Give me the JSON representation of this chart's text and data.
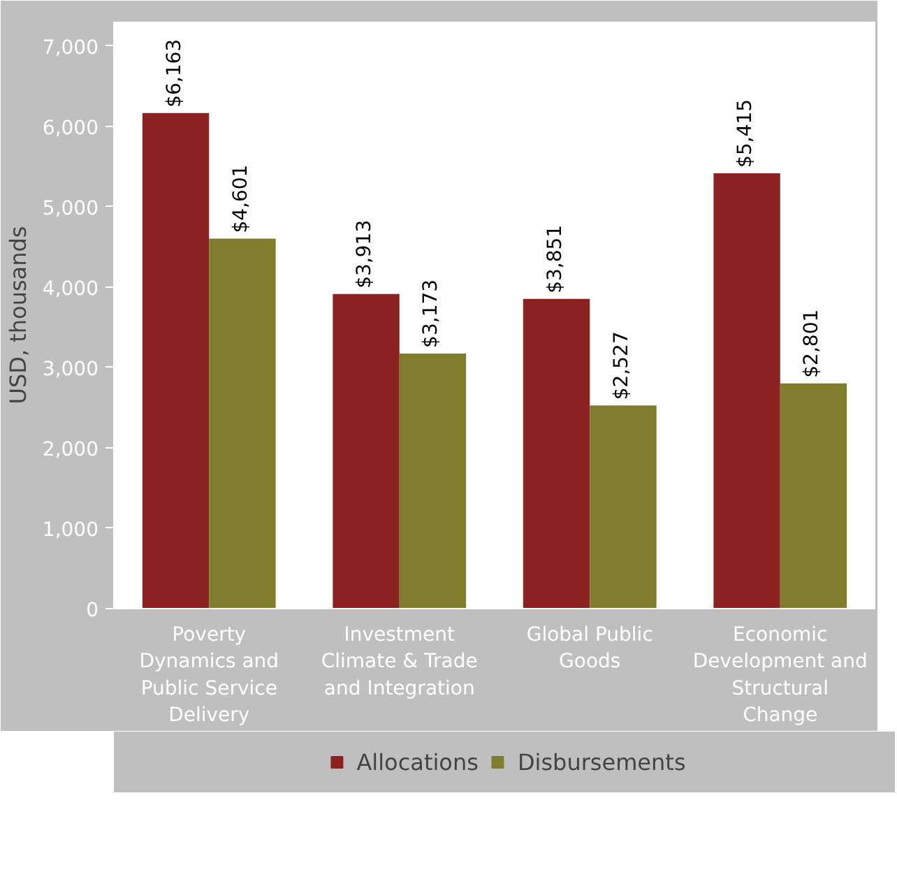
{
  "chart_data": {
    "type": "bar",
    "ylabel": "USD, thousands",
    "categories": [
      "Poverty Dynamics and Public Service Delivery",
      "Investment Climate & Trade and Integration",
      "Global Public Goods",
      "Economic Development and Structural Change"
    ],
    "series": [
      {
        "name": "Allocations",
        "color": "#8b2120",
        "values": [
          6163,
          3913,
          3851,
          5415
        ],
        "value_labels": [
          "$6,163",
          "$3,913",
          "$3,851",
          "$5,415"
        ]
      },
      {
        "name": "Disbursements",
        "color": "#7f7d2c",
        "values": [
          4601,
          3173,
          2527,
          2801
        ],
        "value_labels": [
          "$4,601",
          "$3,173",
          "$2,527",
          "$2,801"
        ]
      }
    ],
    "ylim": [
      0,
      7300
    ],
    "yticks": [
      {
        "value": 0,
        "label": "0"
      },
      {
        "value": 1000,
        "label": "1,000"
      },
      {
        "value": 2000,
        "label": "2,000"
      },
      {
        "value": 3000,
        "label": "3,000"
      },
      {
        "value": 4000,
        "label": "4,000"
      },
      {
        "value": 5000,
        "label": "5,000"
      },
      {
        "value": 6000,
        "label": "6,000"
      },
      {
        "value": 7000,
        "label": "7,000"
      }
    ],
    "grid": false,
    "legend": "bottom"
  }
}
